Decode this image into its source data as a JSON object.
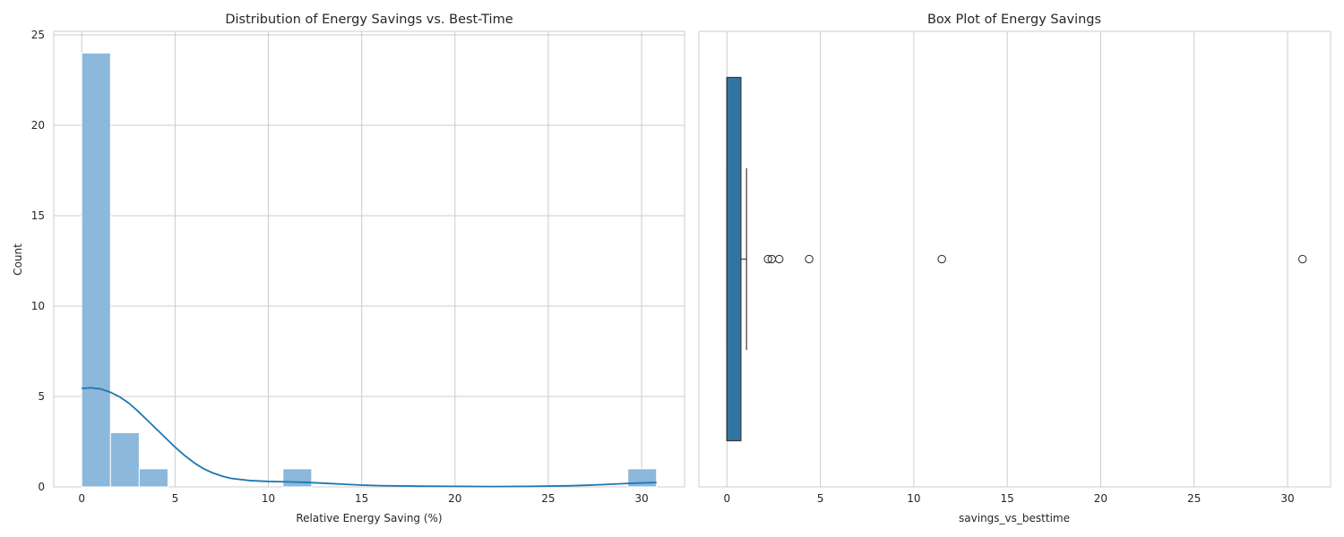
{
  "colors": {
    "background": "#ffffff",
    "grid": "#cccccc",
    "spine": "#cccccc",
    "hist_fill": "#8bb8db",
    "kde_line": "#1f77b4",
    "box_fill": "#3274a1",
    "box_edge": "#3a3a3a"
  },
  "chart_data": [
    {
      "type": "histogram",
      "title": "Distribution of Energy Savings vs. Best-Time",
      "xlabel": "Relative Energy Saving (%)",
      "ylabel": "Count",
      "xlim": [
        -1.5,
        32.3
      ],
      "ylim": [
        0,
        25.2
      ],
      "xticks": [
        0,
        5,
        10,
        15,
        20,
        25,
        30
      ],
      "yticks": [
        0,
        5,
        10,
        15,
        20,
        25
      ],
      "grid": true,
      "bins": [
        {
          "x0": 0.0,
          "x1": 1.54,
          "count": 24
        },
        {
          "x0": 1.54,
          "x1": 3.08,
          "count": 3
        },
        {
          "x0": 3.08,
          "x1": 4.62,
          "count": 1
        },
        {
          "x0": 4.62,
          "x1": 6.16,
          "count": 0
        },
        {
          "x0": 6.16,
          "x1": 7.7,
          "count": 0
        },
        {
          "x0": 7.7,
          "x1": 9.24,
          "count": 0
        },
        {
          "x0": 9.24,
          "x1": 10.78,
          "count": 0
        },
        {
          "x0": 10.78,
          "x1": 12.32,
          "count": 1
        },
        {
          "x0": 12.32,
          "x1": 13.86,
          "count": 0
        },
        {
          "x0": 13.86,
          "x1": 15.4,
          "count": 0
        },
        {
          "x0": 15.4,
          "x1": 16.94,
          "count": 0
        },
        {
          "x0": 16.94,
          "x1": 18.48,
          "count": 0
        },
        {
          "x0": 18.48,
          "x1": 20.02,
          "count": 0
        },
        {
          "x0": 20.02,
          "x1": 21.56,
          "count": 0
        },
        {
          "x0": 21.56,
          "x1": 23.1,
          "count": 0
        },
        {
          "x0": 23.1,
          "x1": 24.64,
          "count": 0
        },
        {
          "x0": 24.64,
          "x1": 26.18,
          "count": 0
        },
        {
          "x0": 26.18,
          "x1": 27.72,
          "count": 0
        },
        {
          "x0": 27.72,
          "x1": 29.26,
          "count": 0
        },
        {
          "x0": 29.26,
          "x1": 30.8,
          "count": 1
        }
      ],
      "kde": {
        "x": [
          0,
          0.5,
          1,
          1.5,
          2,
          2.5,
          3,
          3.5,
          4,
          4.5,
          5,
          5.5,
          6,
          6.5,
          7,
          7.5,
          8,
          9,
          10,
          11,
          12,
          13,
          14,
          15,
          16,
          18,
          20,
          22,
          24,
          26,
          27,
          28,
          29,
          30,
          30.8
        ],
        "y": [
          5.45,
          5.48,
          5.42,
          5.25,
          5.0,
          4.65,
          4.2,
          3.7,
          3.2,
          2.7,
          2.2,
          1.75,
          1.35,
          1.02,
          0.78,
          0.6,
          0.47,
          0.35,
          0.3,
          0.28,
          0.25,
          0.2,
          0.15,
          0.1,
          0.07,
          0.04,
          0.03,
          0.02,
          0.03,
          0.06,
          0.09,
          0.13,
          0.18,
          0.22,
          0.24
        ]
      }
    },
    {
      "type": "box",
      "title": "Box Plot of Energy Savings",
      "xlabel": "savings_vs_besttime",
      "xlim": [
        -1.5,
        32.3
      ],
      "xticks": [
        0,
        5,
        10,
        15,
        20,
        25,
        30
      ],
      "grid": true,
      "q1": 0.0,
      "median": 0.0,
      "q3": 0.75,
      "whisker_low": 0.0,
      "whisker_high": 1.05,
      "outliers": [
        2.2,
        2.4,
        2.8,
        4.4,
        11.5,
        30.8
      ]
    }
  ]
}
